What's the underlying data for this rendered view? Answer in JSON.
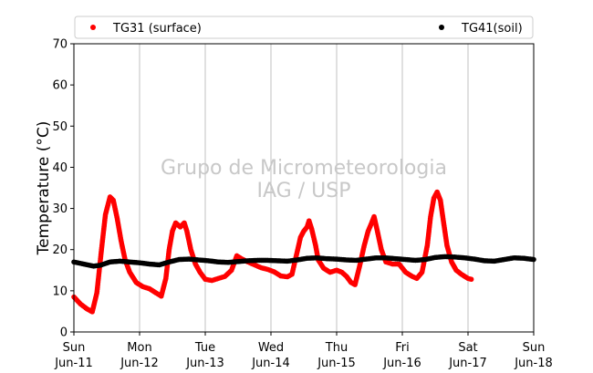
{
  "chart_data": {
    "type": "scatter",
    "ylabel": "Temperature (°C)",
    "xlabel": "",
    "ylim": [
      0,
      70
    ],
    "xlim_days": [
      0,
      7
    ],
    "yticks": [
      0,
      10,
      20,
      30,
      40,
      50,
      60,
      70
    ],
    "xticks": [
      {
        "day": 0,
        "weekday": "Sun",
        "date": "Jun-11"
      },
      {
        "day": 1,
        "weekday": "Mon",
        "date": "Jun-12"
      },
      {
        "day": 2,
        "weekday": "Tue",
        "date": "Jun-13"
      },
      {
        "day": 3,
        "weekday": "Wed",
        "date": "Jun-14"
      },
      {
        "day": 4,
        "weekday": "Thu",
        "date": "Jun-15"
      },
      {
        "day": 5,
        "weekday": "Fri",
        "date": "Jun-16"
      },
      {
        "day": 6,
        "weekday": "Sat",
        "date": "Jun-17"
      },
      {
        "day": 7,
        "weekday": "Sun",
        "date": "Jun-18"
      }
    ],
    "grid": "vertical",
    "legend_placement": "top",
    "watermark": [
      "Grupo de Micrometeorologia",
      "IAG / USP"
    ],
    "series": [
      {
        "name": "TG31 (surface)",
        "color": "#ff0000",
        "points": [
          [
            0.0,
            8.5
          ],
          [
            0.1,
            6.8
          ],
          [
            0.2,
            5.6
          ],
          [
            0.28,
            4.9
          ],
          [
            0.35,
            9.5
          ],
          [
            0.42,
            20.0
          ],
          [
            0.48,
            28.5
          ],
          [
            0.55,
            32.8
          ],
          [
            0.6,
            32.0
          ],
          [
            0.66,
            27.5
          ],
          [
            0.72,
            22.0
          ],
          [
            0.78,
            17.5
          ],
          [
            0.85,
            14.5
          ],
          [
            0.95,
            12.0
          ],
          [
            1.05,
            11.0
          ],
          [
            1.15,
            10.5
          ],
          [
            1.25,
            9.5
          ],
          [
            1.33,
            8.7
          ],
          [
            1.4,
            13.0
          ],
          [
            1.45,
            20.0
          ],
          [
            1.5,
            24.5
          ],
          [
            1.55,
            26.5
          ],
          [
            1.62,
            25.5
          ],
          [
            1.68,
            26.5
          ],
          [
            1.72,
            24.5
          ],
          [
            1.78,
            20.0
          ],
          [
            1.85,
            16.5
          ],
          [
            1.92,
            14.5
          ],
          [
            2.0,
            12.8
          ],
          [
            2.1,
            12.5
          ],
          [
            2.2,
            13.0
          ],
          [
            2.3,
            13.5
          ],
          [
            2.4,
            15.0
          ],
          [
            2.48,
            18.5
          ],
          [
            2.55,
            17.8
          ],
          [
            2.65,
            17.0
          ],
          [
            2.75,
            16.3
          ],
          [
            2.85,
            15.6
          ],
          [
            2.95,
            15.2
          ],
          [
            3.05,
            14.6
          ],
          [
            3.15,
            13.6
          ],
          [
            3.25,
            13.4
          ],
          [
            3.32,
            14.0
          ],
          [
            3.4,
            19.5
          ],
          [
            3.45,
            23.0
          ],
          [
            3.5,
            24.5
          ],
          [
            3.55,
            25.5
          ],
          [
            3.58,
            27.0
          ],
          [
            3.62,
            25.0
          ],
          [
            3.68,
            21.0
          ],
          [
            3.72,
            17.5
          ],
          [
            3.8,
            15.5
          ],
          [
            3.9,
            14.5
          ],
          [
            4.0,
            15.0
          ],
          [
            4.08,
            14.5
          ],
          [
            4.15,
            13.5
          ],
          [
            4.22,
            12.0
          ],
          [
            4.28,
            11.5
          ],
          [
            4.35,
            16.0
          ],
          [
            4.42,
            21.0
          ],
          [
            4.48,
            24.5
          ],
          [
            4.52,
            26.0
          ],
          [
            4.57,
            28.0
          ],
          [
            4.62,
            24.5
          ],
          [
            4.68,
            20.0
          ],
          [
            4.75,
            17.0
          ],
          [
            4.85,
            16.5
          ],
          [
            4.95,
            16.5
          ],
          [
            5.05,
            14.5
          ],
          [
            5.15,
            13.5
          ],
          [
            5.22,
            13.0
          ],
          [
            5.3,
            14.5
          ],
          [
            5.38,
            21.0
          ],
          [
            5.43,
            28.0
          ],
          [
            5.48,
            32.5
          ],
          [
            5.53,
            34.0
          ],
          [
            5.58,
            32.0
          ],
          [
            5.62,
            27.5
          ],
          [
            5.68,
            21.0
          ],
          [
            5.75,
            17.0
          ],
          [
            5.82,
            15.0
          ],
          [
            5.9,
            14.0
          ],
          [
            6.0,
            13.0
          ],
          [
            6.05,
            12.8
          ]
        ]
      },
      {
        "name": "TG41(soil)",
        "color": "#000000",
        "points": [
          [
            0.0,
            17.0
          ],
          [
            0.15,
            16.5
          ],
          [
            0.3,
            16.0
          ],
          [
            0.4,
            16.2
          ],
          [
            0.55,
            17.0
          ],
          [
            0.7,
            17.2
          ],
          [
            0.85,
            17.0
          ],
          [
            1.0,
            16.8
          ],
          [
            1.15,
            16.5
          ],
          [
            1.3,
            16.3
          ],
          [
            1.45,
            17.0
          ],
          [
            1.6,
            17.6
          ],
          [
            1.75,
            17.7
          ],
          [
            1.9,
            17.5
          ],
          [
            2.05,
            17.3
          ],
          [
            2.2,
            17.0
          ],
          [
            2.35,
            16.9
          ],
          [
            2.5,
            17.1
          ],
          [
            2.65,
            17.3
          ],
          [
            2.8,
            17.4
          ],
          [
            2.95,
            17.4
          ],
          [
            3.1,
            17.3
          ],
          [
            3.25,
            17.2
          ],
          [
            3.4,
            17.5
          ],
          [
            3.55,
            17.9
          ],
          [
            3.7,
            18.0
          ],
          [
            3.85,
            17.8
          ],
          [
            4.0,
            17.7
          ],
          [
            4.15,
            17.5
          ],
          [
            4.3,
            17.4
          ],
          [
            4.45,
            17.7
          ],
          [
            4.6,
            18.0
          ],
          [
            4.75,
            18.0
          ],
          [
            4.9,
            17.8
          ],
          [
            5.05,
            17.6
          ],
          [
            5.2,
            17.4
          ],
          [
            5.35,
            17.6
          ],
          [
            5.5,
            18.1
          ],
          [
            5.65,
            18.3
          ],
          [
            5.8,
            18.2
          ],
          [
            5.95,
            18.0
          ],
          [
            6.1,
            17.7
          ],
          [
            6.25,
            17.3
          ],
          [
            6.4,
            17.2
          ],
          [
            6.55,
            17.6
          ],
          [
            6.7,
            18.0
          ],
          [
            6.85,
            17.9
          ],
          [
            7.0,
            17.6
          ]
        ]
      }
    ]
  }
}
